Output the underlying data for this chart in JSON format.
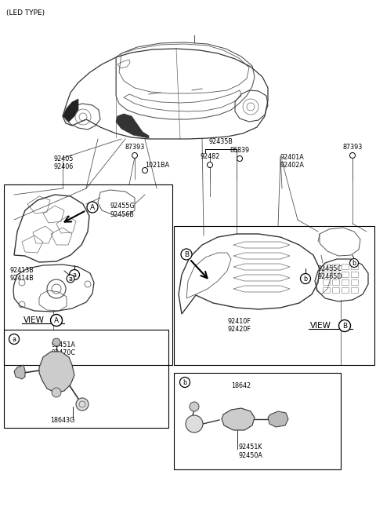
{
  "bg_color": "#ffffff",
  "line_color": "#000000",
  "gray_color": "#555555",
  "light_gray": "#888888",
  "font_size": 6.5,
  "font_size_sm": 5.8,
  "labels": {
    "led_type": "(LED TYPE)",
    "92405_92406": "92405\n92406",
    "87393_left": "87393",
    "87393_right": "87393",
    "92435B": "92435B",
    "86839": "86839",
    "92482": "92482",
    "92401A_92402A": "92401A\n92402A",
    "1021BA": "1021BA",
    "92455G_92456B": "92455G\n92456B",
    "92413B_92414B": "92413B\n92414B",
    "view_A": "VIEW",
    "view_B": "VIEW",
    "92455C_92465D": "92455C\n92465D",
    "92410F_92420F": "92410F\n92420F",
    "92451A_92470C": "92451A\n92470C",
    "18643G": "18643G",
    "18642": "18642",
    "92451K_92450A": "92451K\n92450A"
  }
}
